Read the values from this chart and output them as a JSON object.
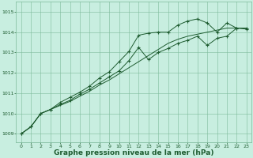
{
  "background_color": "#c8eee0",
  "grid_color": "#7dba9a",
  "line_color": "#1e5c30",
  "marker_color": "#1e5c30",
  "xlabel": "Graphe pression niveau de la mer (hPa)",
  "xlabel_fontsize": 6.5,
  "xlim": [
    -0.5,
    23.5
  ],
  "ylim": [
    1008.6,
    1015.5
  ],
  "yticks": [
    1009,
    1010,
    1011,
    1012,
    1013,
    1014,
    1015
  ],
  "xticks": [
    0,
    1,
    2,
    3,
    4,
    5,
    6,
    7,
    8,
    9,
    10,
    11,
    12,
    13,
    14,
    15,
    16,
    17,
    18,
    19,
    20,
    21,
    22,
    23
  ],
  "series1_x": [
    0,
    1,
    2,
    3,
    4,
    5,
    6,
    7,
    8,
    9,
    10,
    11,
    12,
    13,
    14,
    15,
    16,
    17,
    18,
    19,
    20,
    21,
    22,
    23
  ],
  "series1_y": [
    1009.0,
    1009.35,
    1010.0,
    1010.2,
    1010.55,
    1010.8,
    1011.05,
    1011.35,
    1011.75,
    1012.05,
    1012.55,
    1013.05,
    1013.85,
    1013.95,
    1014.0,
    1014.0,
    1014.35,
    1014.55,
    1014.65,
    1014.45,
    1014.0,
    1014.45,
    1014.2,
    1014.2
  ],
  "series2_x": [
    0,
    1,
    2,
    3,
    4,
    5,
    6,
    7,
    8,
    9,
    10,
    11,
    12,
    13,
    14,
    15,
    16,
    17,
    18,
    19,
    20,
    21,
    22,
    23
  ],
  "series2_y": [
    1009.0,
    1009.35,
    1010.0,
    1010.2,
    1010.45,
    1010.65,
    1010.95,
    1011.2,
    1011.5,
    1011.8,
    1012.1,
    1012.6,
    1013.25,
    1012.65,
    1013.0,
    1013.2,
    1013.45,
    1013.6,
    1013.8,
    1013.35,
    1013.7,
    1013.8,
    1014.2,
    1014.15
  ],
  "series3_x": [
    0,
    1,
    2,
    3,
    4,
    5,
    6,
    7,
    8,
    9,
    10,
    11,
    12,
    13,
    14,
    15,
    16,
    17,
    18,
    19,
    20,
    21,
    22,
    23
  ],
  "series3_y": [
    1009.0,
    1009.35,
    1010.0,
    1010.2,
    1010.4,
    1010.6,
    1010.85,
    1011.1,
    1011.4,
    1011.65,
    1011.95,
    1012.25,
    1012.55,
    1012.85,
    1013.15,
    1013.45,
    1013.65,
    1013.8,
    1013.9,
    1014.0,
    1014.1,
    1014.2,
    1014.2,
    1014.2
  ]
}
